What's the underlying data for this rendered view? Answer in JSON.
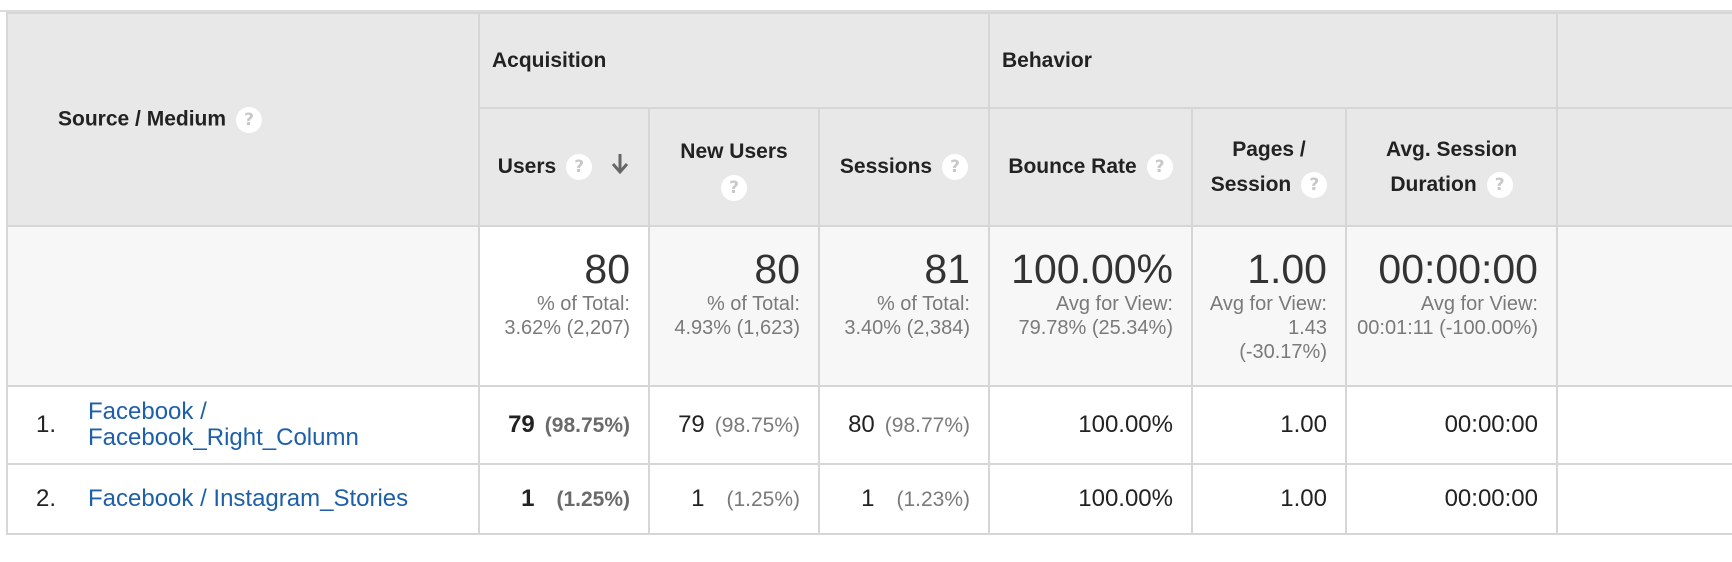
{
  "header": {
    "dimension": "Source / Medium",
    "groups": [
      {
        "label": "Acquisition"
      },
      {
        "label": "Behavior"
      }
    ],
    "columns": {
      "users": "Users",
      "new_users": "New Users",
      "sessions": "Sessions",
      "bounce_rate": "Bounce Rate",
      "pages_session_line1": "Pages /",
      "pages_session_line2": "Session",
      "avg_duration_line1": "Avg. Session",
      "avg_duration_line2": "Duration"
    },
    "help_glyph": "?"
  },
  "totals": {
    "users": {
      "value": "80",
      "line1": "% of Total:",
      "line2": "3.62% (2,207)"
    },
    "new_users": {
      "value": "80",
      "line1": "% of Total:",
      "line2": "4.93% (1,623)"
    },
    "sessions": {
      "value": "81",
      "line1": "% of Total:",
      "line2": "3.40% (2,384)"
    },
    "bounce_rate": {
      "value": "100.00%",
      "line1": "Avg for View:",
      "line2": "79.78% (25.34%)"
    },
    "pages_session": {
      "value": "1.00",
      "line1": "Avg for View:",
      "line2": "1.43",
      "line3": "(-30.17%)"
    },
    "avg_duration": {
      "value": "00:00:00",
      "line1": "Avg for View:",
      "line2": "00:01:11 (-100.00%)"
    }
  },
  "rows": [
    {
      "index": "1.",
      "source_line1": "Facebook /",
      "source_line2": "Facebook_Right_Column",
      "users": "79",
      "users_pct": "(98.75%)",
      "new_users": "79",
      "new_users_pct": "(98.75%)",
      "sessions": "80",
      "sessions_pct": "(98.77%)",
      "bounce_rate": "100.00%",
      "pages_session": "1.00",
      "avg_duration": "00:00:00"
    },
    {
      "index": "2.",
      "source_line1": "Facebook / Instagram_Stories",
      "users": "1",
      "users_pct": "(1.25%)",
      "new_users": "1",
      "new_users_pct": "(1.25%)",
      "sessions": "1",
      "sessions_pct": "(1.23%)",
      "bounce_rate": "100.00%",
      "pages_session": "1.00",
      "avg_duration": "00:00:00"
    }
  ],
  "colors": {
    "header_bg": "#e8e8e8",
    "totals_bg": "#f7f7f7",
    "link": "#1e5faa",
    "border": "#d6d6d6",
    "muted_text": "#7a7a7a"
  },
  "icons": {
    "help": "help-circle-icon",
    "sort": "arrow-down-icon"
  }
}
